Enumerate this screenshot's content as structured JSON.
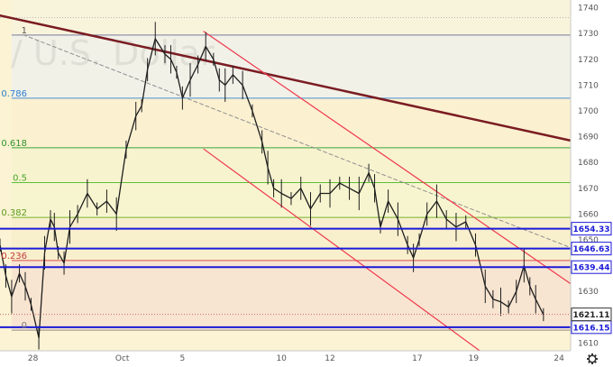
{
  "chart_data": {
    "type": "line",
    "title": "",
    "xlabel": "",
    "ylabel": "",
    "watermark": "/ U.S. Dollar",
    "y_axis_position": "right",
    "ylim": [
      1607,
      1743
    ],
    "yticks": [
      1610,
      1620,
      1630,
      1640,
      1650,
      1660,
      1670,
      1680,
      1690,
      1700,
      1710,
      1720,
      1730,
      1740
    ],
    "xlim": [
      0,
      29.4
    ],
    "xticks": [
      {
        "x": 1.7,
        "label": "28"
      },
      {
        "x": 6.3,
        "label": "Oct"
      },
      {
        "x": 9.4,
        "label": "5"
      },
      {
        "x": 14.5,
        "label": "10"
      },
      {
        "x": 17.0,
        "label": "12"
      },
      {
        "x": 21.5,
        "label": "17"
      },
      {
        "x": 24.4,
        "label": "19"
      },
      {
        "x": 28.8,
        "label": "24"
      }
    ],
    "price": {
      "x": [
        0.0,
        0.3,
        0.6,
        1.0,
        1.3,
        1.6,
        2.0,
        2.3,
        2.6,
        2.8,
        3.0,
        3.3,
        3.6,
        4.0,
        4.5,
        5.0,
        5.5,
        6.0,
        6.5,
        7.0,
        7.3,
        7.6,
        8.0,
        8.5,
        8.8,
        9.1,
        9.4,
        9.8,
        10.2,
        10.6,
        11.0,
        11.3,
        11.6,
        12.0,
        12.5,
        13.0,
        13.5,
        13.8,
        14.1,
        14.5,
        15.0,
        15.5,
        16.0,
        16.5,
        17.0,
        17.5,
        18.0,
        18.5,
        19.0,
        19.3,
        19.6,
        20.0,
        20.5,
        21.0,
        21.3,
        21.6,
        22.0,
        22.5,
        23.0,
        23.5,
        24.0,
        24.5,
        25.0,
        25.4,
        25.8,
        26.2,
        26.6,
        27.0,
        27.3,
        27.6,
        28.0
      ],
      "y": [
        1648,
        1636,
        1628,
        1637,
        1632,
        1625,
        1612,
        1645,
        1658,
        1655,
        1645,
        1641,
        1655,
        1660,
        1668,
        1662,
        1665,
        1660,
        1685,
        1698,
        1702,
        1716,
        1728,
        1722,
        1720,
        1715,
        1705,
        1712,
        1718,
        1725,
        1720,
        1712,
        1710,
        1714,
        1710,
        1700,
        1688,
        1678,
        1670,
        1668,
        1666,
        1670,
        1662,
        1668,
        1668,
        1672,
        1670,
        1668,
        1676,
        1670,
        1655,
        1665,
        1658,
        1648,
        1643,
        1650,
        1660,
        1665,
        1658,
        1655,
        1657,
        1648,
        1632,
        1627,
        1626,
        1624,
        1630,
        1640,
        1632,
        1627,
        1621
      ]
    },
    "horizontal_levels": [
      {
        "y": 1654.33,
        "label": "1654.33",
        "color": "#1b1bd6"
      },
      {
        "y": 1646.63,
        "label": "1646.63",
        "color": "#1b1bd6"
      },
      {
        "y": 1639.44,
        "label": "1639.44",
        "color": "#1b1bd6"
      },
      {
        "y": 1616.15,
        "label": "1616.15",
        "color": "#1b1bd6"
      }
    ],
    "last_price": {
      "y": 1621.11,
      "label": "1621.11"
    },
    "fibonacci": {
      "low": 1615.0,
      "high": 1729.4,
      "start_x": 0.6,
      "levels": [
        {
          "ratio": 1,
          "label": "1",
          "line_color": "#7a7aa0",
          "label_color": "#555555",
          "zone": "#f1f1e8"
        },
        {
          "ratio": 0.786,
          "label": "0.786",
          "line_color": "#4a8fd6",
          "label_color": "#2d7fd0",
          "zone": "#fbf0d0"
        },
        {
          "ratio": 0.618,
          "label": "0.618",
          "line_color": "#3aa63a",
          "label_color": "#2e962e",
          "zone": "#f7f3cf"
        },
        {
          "ratio": 0.5,
          "label": "0.5",
          "line_color": "#5cbf3a",
          "label_color": "#4aa52a",
          "zone": "#f7f5cf"
        },
        {
          "ratio": 0.382,
          "label": "0.382",
          "line_color": "#74b52c",
          "label_color": "#5d9a1f",
          "zone": "#f8efcc"
        },
        {
          "ratio": 0.236,
          "label": "0.236",
          "line_color": "#d64c4c",
          "label_color": "#c43c3c",
          "zone": "#f8e5d1"
        },
        {
          "ratio": 0,
          "label": "0",
          "line_color": "#8d8d8d",
          "label_color": "#777777",
          "zone": "#f7e6d6"
        }
      ]
    },
    "trendlines": [
      {
        "x1": 0.0,
        "y1": 1737,
        "x2": 29.4,
        "y2": 1688.5,
        "color": "#7a1c22",
        "width": 2.5,
        "dashed": false
      },
      {
        "x1": 1.2,
        "y1": 1729.5,
        "x2": 29.4,
        "y2": 1647,
        "color": "#909090",
        "width": 1,
        "dashed": true
      },
      {
        "x1": 10.5,
        "y1": 1730.8,
        "x2": 29.4,
        "y2": 1633,
        "color": "#ef3a4e",
        "width": 1.2,
        "dashed": false
      },
      {
        "x1": 10.5,
        "y1": 1685.2,
        "x2": 24.9,
        "y2": 1606,
        "color": "#ef3a4e",
        "width": 1.2,
        "dashed": false
      }
    ]
  }
}
